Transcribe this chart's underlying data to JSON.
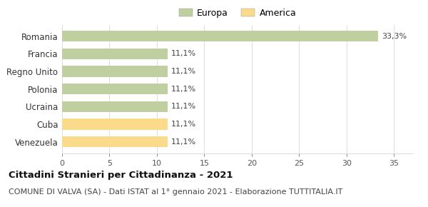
{
  "categories": [
    "Venezuela",
    "Cuba",
    "Ucraina",
    "Polonia",
    "Regno Unito",
    "Francia",
    "Romania"
  ],
  "values": [
    11.1,
    11.1,
    11.1,
    11.1,
    11.1,
    11.1,
    33.3
  ],
  "colors": [
    "#FADA8B",
    "#FADA8B",
    "#BFCF9F",
    "#BFCF9F",
    "#BFCF9F",
    "#BFCF9F",
    "#BFCF9F"
  ],
  "bar_labels": [
    "11,1%",
    "11,1%",
    "11,1%",
    "11,1%",
    "11,1%",
    "11,1%",
    "33,3%"
  ],
  "legend": [
    {
      "label": "Europa",
      "color": "#BFCF9F"
    },
    {
      "label": "America",
      "color": "#FADA8B"
    }
  ],
  "xlim": [
    0,
    37
  ],
  "xticks": [
    0,
    5,
    10,
    15,
    20,
    25,
    30,
    35
  ],
  "title": "Cittadini Stranieri per Cittadinanza - 2021",
  "subtitle": "COMUNE DI VALVA (SA) - Dati ISTAT al 1° gennaio 2021 - Elaborazione TUTTITALIA.IT",
  "bg_color": "#FFFFFF",
  "grid_color": "#DDDDDD",
  "bar_label_fontsize": 8,
  "title_fontsize": 9.5,
  "subtitle_fontsize": 8,
  "ytick_fontsize": 8.5,
  "xtick_fontsize": 8,
  "bar_height": 0.62
}
